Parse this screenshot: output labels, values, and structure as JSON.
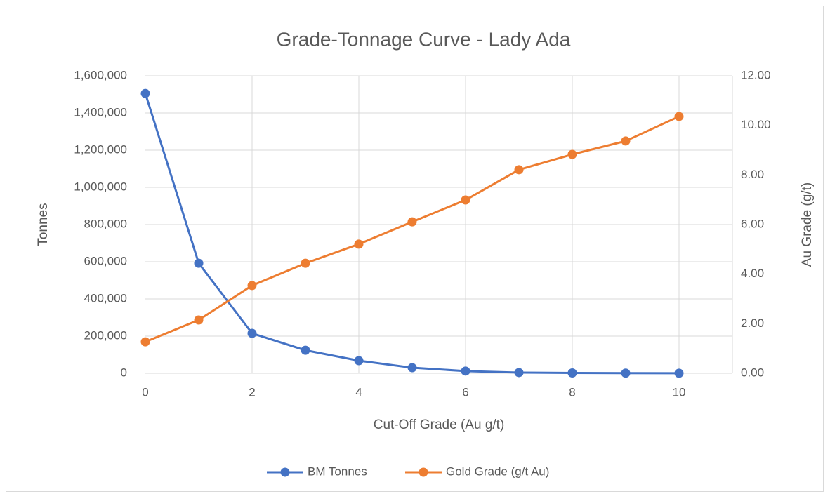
{
  "chart_data": {
    "type": "line",
    "title": "Grade-Tonnage Curve - Lady Ada",
    "x_label": "Cut-Off Grade (Au g/t)",
    "y_label": "Tonnes",
    "y2_label": "Au Grade (g/t)",
    "x": [
      0,
      1,
      2,
      3,
      4,
      5,
      6,
      7,
      8,
      9,
      10
    ],
    "xlim": [
      0,
      11
    ],
    "xticks": [
      0,
      2,
      4,
      6,
      8,
      10
    ],
    "ylim": [
      0,
      1600000
    ],
    "yticks": [
      0,
      {
        "value": 200000,
        "label": "200,000"
      },
      {
        "value": 400000,
        "label": "400,000"
      },
      {
        "value": 600000,
        "label": "600,000"
      },
      {
        "value": 800000,
        "label": "800,000"
      },
      {
        "value": 1000000,
        "label": "1,000,000"
      },
      {
        "value": 1200000,
        "label": "1,200,000"
      },
      {
        "value": 1400000,
        "label": "1,400,000"
      },
      {
        "value": 1600000,
        "label": "1,600,000"
      }
    ],
    "y2lim": [
      0,
      12
    ],
    "y2ticks": [
      {
        "value": 0,
        "label": "0.00"
      },
      {
        "value": 2,
        "label": "2.00"
      },
      {
        "value": 4,
        "label": "4.00"
      },
      {
        "value": 6,
        "label": "6.00"
      },
      {
        "value": 8,
        "label": "8.00"
      },
      {
        "value": 10,
        "label": "10.00"
      },
      {
        "value": 12,
        "label": "12.00"
      }
    ],
    "grid": true,
    "legend": "bottom",
    "series": [
      {
        "name": "BM Tonnes",
        "color": "#4472c4",
        "values": [
          1505000,
          592000,
          215000,
          124000,
          68000,
          30000,
          12000,
          4000,
          2000,
          1000,
          500
        ]
      },
      {
        "name": "Gold Grade (g/t Au)",
        "color": "#ed7d31",
        "axis": "y2",
        "values": [
          1.27,
          2.15,
          3.54,
          4.44,
          5.21,
          6.11,
          6.99,
          8.21,
          8.83,
          9.37,
          10.36
        ]
      }
    ]
  }
}
